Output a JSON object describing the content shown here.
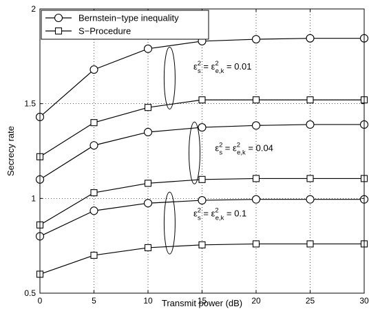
{
  "chart_data": {
    "type": "line",
    "title": "",
    "xlabel": "Transmit power (dB)",
    "ylabel": "Secrecy rate",
    "xlim": [
      0,
      30
    ],
    "ylim": [
      0.5,
      2
    ],
    "x_ticks": [
      "0",
      "5",
      "10",
      "15",
      "20",
      "25",
      "30"
    ],
    "y_ticks": [
      "0.5",
      "1",
      "1.5",
      "2"
    ],
    "grid": true,
    "legend_position": "top-left",
    "x": [
      0,
      5,
      10,
      15,
      20,
      25,
      30
    ],
    "legend": [
      {
        "label": "Bernstein−type inequality",
        "marker": "circle"
      },
      {
        "label": "S−Procedure",
        "marker": "square"
      }
    ],
    "series": [
      {
        "group": 0,
        "marker": "circle",
        "values": [
          1.43,
          1.68,
          1.79,
          1.83,
          1.84,
          1.845,
          1.845
        ]
      },
      {
        "group": 0,
        "marker": "square",
        "values": [
          1.22,
          1.4,
          1.48,
          1.52,
          1.52,
          1.52,
          1.52
        ]
      },
      {
        "group": 1,
        "marker": "circle",
        "values": [
          1.1,
          1.28,
          1.35,
          1.375,
          1.385,
          1.39,
          1.39
        ]
      },
      {
        "group": 1,
        "marker": "square",
        "values": [
          0.86,
          1.03,
          1.08,
          1.1,
          1.105,
          1.105,
          1.105
        ]
      },
      {
        "group": 2,
        "marker": "circle",
        "values": [
          0.8,
          0.935,
          0.975,
          0.99,
          0.995,
          0.995,
          0.995
        ]
      },
      {
        "group": 2,
        "marker": "square",
        "values": [
          0.6,
          0.7,
          0.74,
          0.755,
          0.76,
          0.76,
          0.76
        ]
      }
    ],
    "annotations": [
      {
        "value": "= 0.01",
        "ellipse_x": 12,
        "ellipse_y": 1.635,
        "text_x": 14.2,
        "text_y": 1.68
      },
      {
        "value": "= 0.04",
        "ellipse_x": 14.3,
        "ellipse_y": 1.24,
        "text_x": 16.2,
        "text_y": 1.25
      },
      {
        "value": "= 0.1",
        "ellipse_x": 12,
        "ellipse_y": 0.87,
        "text_x": 14.2,
        "text_y": 0.905
      }
    ],
    "annotation_symbol": "ε",
    "annotation_sup": "2",
    "annotation_sub_s": "s",
    "annotation_sub_ek": "e,k"
  }
}
